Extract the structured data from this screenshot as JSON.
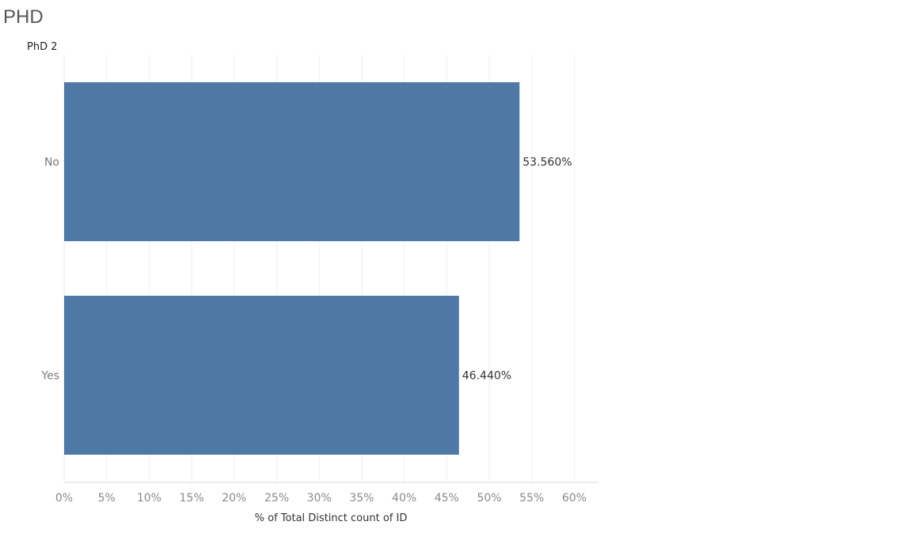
{
  "title": "PHD",
  "chart_data": {
    "type": "bar",
    "orientation": "horizontal",
    "row_header": "PhD 2",
    "categories": [
      "No",
      "Yes"
    ],
    "values": [
      53.56,
      46.44
    ],
    "data_labels": [
      "53.560%",
      "46.440%"
    ],
    "xlabel": "% of Total Distinct count of ID",
    "xlim": [
      0,
      60
    ],
    "xticks": [
      0,
      5,
      10,
      15,
      20,
      25,
      30,
      35,
      40,
      45,
      50,
      55,
      60
    ],
    "xtick_labels": [
      "0%",
      "5%",
      "10%",
      "15%",
      "20%",
      "25%",
      "30%",
      "35%",
      "40%",
      "45%",
      "50%",
      "55%",
      "60%"
    ],
    "grid": true,
    "bar_color": "#4e79a7"
  }
}
